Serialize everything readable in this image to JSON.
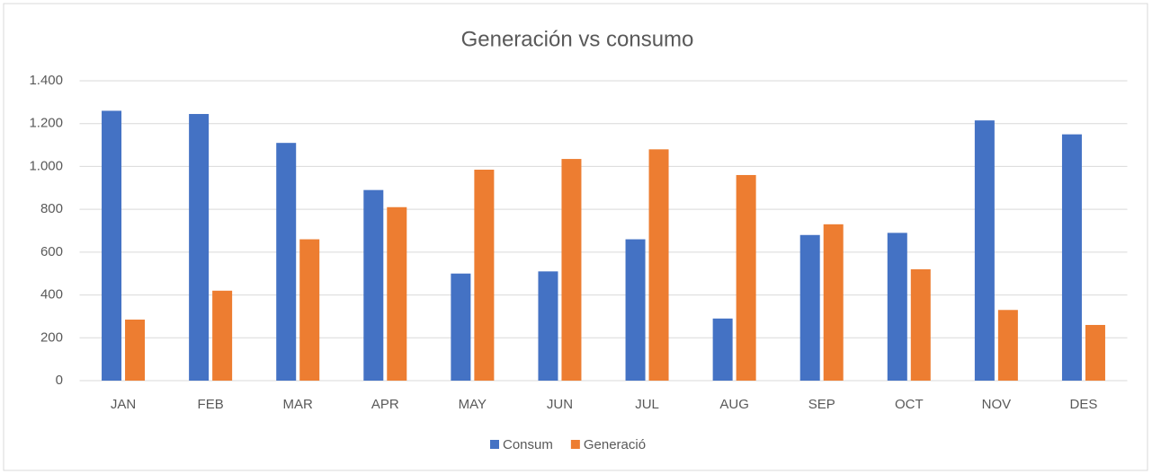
{
  "chart_data": {
    "type": "bar",
    "title": "Generación vs consumo",
    "categories": [
      "JAN",
      "FEB",
      "MAR",
      "APR",
      "MAY",
      "JUN",
      "JUL",
      "AUG",
      "SEP",
      "OCT",
      "NOV",
      "DES"
    ],
    "series": [
      {
        "name": "Consum",
        "color": "#4472c4",
        "values": [
          1260,
          1245,
          1110,
          890,
          500,
          510,
          660,
          290,
          680,
          690,
          1215,
          1150
        ]
      },
      {
        "name": "Generació",
        "color": "#ed7d31",
        "values": [
          285,
          420,
          660,
          810,
          985,
          1035,
          1080,
          960,
          730,
          520,
          330,
          260
        ]
      }
    ],
    "ylim": [
      0,
      1400
    ],
    "yticks": [
      0,
      200,
      400,
      600,
      800,
      {
        "value": 1000,
        "label": "1.000"
      },
      {
        "value": 1200,
        "label": "1.200"
      },
      {
        "value": 1400,
        "label": "1.400"
      }
    ],
    "grid": true,
    "legend": "bottom"
  }
}
